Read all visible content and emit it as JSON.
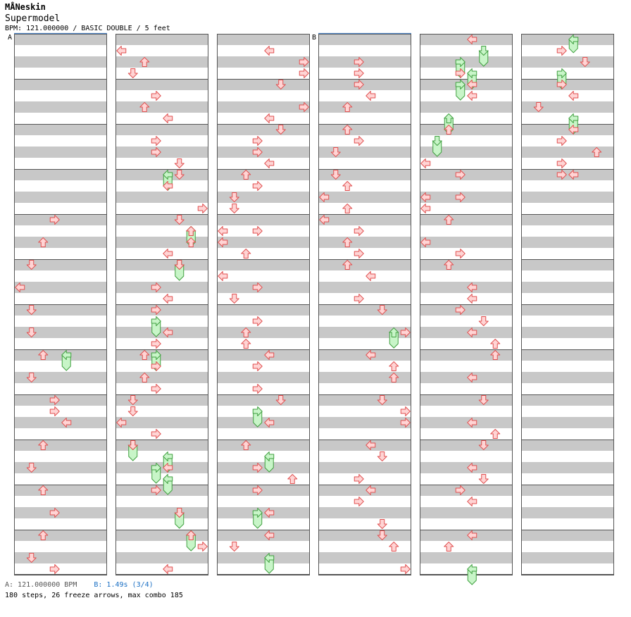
{
  "header": {
    "artist": "MÅNeskin",
    "title": "Supermodel",
    "info": "BPM: 121.000000 / BASIC DOUBLE / 5 feet"
  },
  "footer": {
    "bpm_a": "A: 121.000000 BPM",
    "bpm_b": "B: 1.49s (3/4)",
    "summary": "180 steps, 26 freeze arrows, max combo 185"
  },
  "markers": [
    {
      "label": "A",
      "column": 1,
      "beat": 0
    },
    {
      "label": "B",
      "column": 4,
      "beat": 0
    }
  ],
  "colors": {
    "stripe": "#c8c8c8",
    "border": "#555555",
    "arrow_fill": "#ffd4d4",
    "arrow_stroke": "#e05050",
    "freeze_fill": "#c8f5c8",
    "freeze_stroke": "#40a040",
    "marker_line": "#4a7fc0"
  },
  "chart_data": {
    "type": "step_chart",
    "mode": "BASIC DOUBLE",
    "difficulty_feet": 5,
    "bpm": 121,
    "columns": 6,
    "beats_per_column": 48,
    "lanes": [
      "P1-left",
      "P1-down",
      "P1-up",
      "P1-right",
      "P2-left",
      "P2-down",
      "P2-up",
      "P2-right"
    ],
    "steps_total": 180,
    "freeze_arrows": 26,
    "max_combo": 185,
    "notes": [
      {
        "col": 1,
        "beat": 16,
        "lane": 3
      },
      {
        "col": 1,
        "beat": 18,
        "lane": 2
      },
      {
        "col": 1,
        "beat": 20,
        "lane": 1
      },
      {
        "col": 1,
        "beat": 22,
        "lane": 0
      },
      {
        "col": 1,
        "beat": 24,
        "lane": 1
      },
      {
        "col": 1,
        "beat": 26,
        "lane": 1
      },
      {
        "col": 1,
        "beat": 28,
        "lane": 2
      },
      {
        "col": 1,
        "beat": 30,
        "lane": 1
      },
      {
        "col": 1,
        "beat": 32,
        "lane": 3
      },
      {
        "col": 1,
        "beat": 33,
        "lane": 3
      },
      {
        "col": 1,
        "beat": 34,
        "lane": 4
      },
      {
        "col": 1,
        "beat": 36,
        "lane": 2
      },
      {
        "col": 1,
        "beat": 38,
        "lane": 1
      },
      {
        "col": 1,
        "beat": 40,
        "lane": 2
      },
      {
        "col": 1,
        "beat": 42,
        "lane": 3
      },
      {
        "col": 1,
        "beat": 44,
        "lane": 2
      },
      {
        "col": 1,
        "beat": 46,
        "lane": 1
      },
      {
        "col": 1,
        "beat": 47,
        "lane": 3
      },
      {
        "col": 2,
        "beat": 1,
        "lane": 0
      },
      {
        "col": 2,
        "beat": 2,
        "lane": 2
      },
      {
        "col": 2,
        "beat": 3,
        "lane": 1
      },
      {
        "col": 2,
        "beat": 5,
        "lane": 3
      },
      {
        "col": 2,
        "beat": 6,
        "lane": 2
      },
      {
        "col": 2,
        "beat": 7,
        "lane": 4
      },
      {
        "col": 2,
        "beat": 9,
        "lane": 3
      },
      {
        "col": 2,
        "beat": 10,
        "lane": 3
      },
      {
        "col": 2,
        "beat": 11,
        "lane": 5
      },
      {
        "col": 2,
        "beat": 12,
        "lane": 5
      },
      {
        "col": 2,
        "beat": 13,
        "lane": 4
      },
      {
        "col": 2,
        "beat": 15,
        "lane": 7
      },
      {
        "col": 2,
        "beat": 16,
        "lane": 5
      },
      {
        "col": 2,
        "beat": 17,
        "lane": 6
      },
      {
        "col": 2,
        "beat": 18,
        "lane": 6
      },
      {
        "col": 2,
        "beat": 19,
        "lane": 4
      },
      {
        "col": 2,
        "beat": 20,
        "lane": 5
      },
      {
        "col": 2,
        "beat": 22,
        "lane": 3
      },
      {
        "col": 2,
        "beat": 23,
        "lane": 4
      },
      {
        "col": 2,
        "beat": 24,
        "lane": 3
      },
      {
        "col": 2,
        "beat": 26,
        "lane": 4
      },
      {
        "col": 2,
        "beat": 27,
        "lane": 3
      },
      {
        "col": 2,
        "beat": 28,
        "lane": 2
      },
      {
        "col": 2,
        "beat": 29,
        "lane": 3
      },
      {
        "col": 2,
        "beat": 30,
        "lane": 2
      },
      {
        "col": 2,
        "beat": 31,
        "lane": 3
      },
      {
        "col": 2,
        "beat": 32,
        "lane": 1
      },
      {
        "col": 2,
        "beat": 33,
        "lane": 1
      },
      {
        "col": 2,
        "beat": 34,
        "lane": 0
      },
      {
        "col": 2,
        "beat": 35,
        "lane": 3
      },
      {
        "col": 2,
        "beat": 36,
        "lane": 1
      },
      {
        "col": 2,
        "beat": 38,
        "lane": 4
      },
      {
        "col": 2,
        "beat": 40,
        "lane": 3
      },
      {
        "col": 2,
        "beat": 42,
        "lane": 5
      },
      {
        "col": 2,
        "beat": 44,
        "lane": 6
      },
      {
        "col": 2,
        "beat": 45,
        "lane": 7
      },
      {
        "col": 2,
        "beat": 47,
        "lane": 4
      },
      {
        "col": 3,
        "beat": 1,
        "lane": 4
      },
      {
        "col": 3,
        "beat": 2,
        "lane": 7
      },
      {
        "col": 3,
        "beat": 3,
        "lane": 7
      },
      {
        "col": 3,
        "beat": 4,
        "lane": 5
      },
      {
        "col": 3,
        "beat": 6,
        "lane": 7
      },
      {
        "col": 3,
        "beat": 7,
        "lane": 4
      },
      {
        "col": 3,
        "beat": 8,
        "lane": 5
      },
      {
        "col": 3,
        "beat": 9,
        "lane": 3
      },
      {
        "col": 3,
        "beat": 10,
        "lane": 3
      },
      {
        "col": 3,
        "beat": 11,
        "lane": 4
      },
      {
        "col": 3,
        "beat": 12,
        "lane": 2
      },
      {
        "col": 3,
        "beat": 13,
        "lane": 3
      },
      {
        "col": 3,
        "beat": 14,
        "lane": 1
      },
      {
        "col": 3,
        "beat": 15,
        "lane": 1
      },
      {
        "col": 3,
        "beat": 17,
        "lane": 0
      },
      {
        "col": 3,
        "beat": 17,
        "lane": 3
      },
      {
        "col": 3,
        "beat": 18,
        "lane": 0
      },
      {
        "col": 3,
        "beat": 19,
        "lane": 2
      },
      {
        "col": 3,
        "beat": 21,
        "lane": 0
      },
      {
        "col": 3,
        "beat": 22,
        "lane": 3
      },
      {
        "col": 3,
        "beat": 23,
        "lane": 1
      },
      {
        "col": 3,
        "beat": 25,
        "lane": 3
      },
      {
        "col": 3,
        "beat": 26,
        "lane": 2
      },
      {
        "col": 3,
        "beat": 27,
        "lane": 2
      },
      {
        "col": 3,
        "beat": 28,
        "lane": 4
      },
      {
        "col": 3,
        "beat": 29,
        "lane": 3
      },
      {
        "col": 3,
        "beat": 31,
        "lane": 3
      },
      {
        "col": 3,
        "beat": 32,
        "lane": 5
      },
      {
        "col": 3,
        "beat": 34,
        "lane": 4
      },
      {
        "col": 3,
        "beat": 36,
        "lane": 2
      },
      {
        "col": 3,
        "beat": 38,
        "lane": 3
      },
      {
        "col": 3,
        "beat": 39,
        "lane": 6
      },
      {
        "col": 3,
        "beat": 40,
        "lane": 3
      },
      {
        "col": 3,
        "beat": 42,
        "lane": 4
      },
      {
        "col": 3,
        "beat": 44,
        "lane": 4
      },
      {
        "col": 3,
        "beat": 45,
        "lane": 1
      },
      {
        "col": 4,
        "beat": 2,
        "lane": 3
      },
      {
        "col": 4,
        "beat": 3,
        "lane": 3
      },
      {
        "col": 4,
        "beat": 4,
        "lane": 3
      },
      {
        "col": 4,
        "beat": 5,
        "lane": 4
      },
      {
        "col": 4,
        "beat": 6,
        "lane": 2
      },
      {
        "col": 4,
        "beat": 8,
        "lane": 2
      },
      {
        "col": 4,
        "beat": 9,
        "lane": 3
      },
      {
        "col": 4,
        "beat": 10,
        "lane": 1
      },
      {
        "col": 4,
        "beat": 12,
        "lane": 1
      },
      {
        "col": 4,
        "beat": 13,
        "lane": 2
      },
      {
        "col": 4,
        "beat": 14,
        "lane": 0
      },
      {
        "col": 4,
        "beat": 15,
        "lane": 2
      },
      {
        "col": 4,
        "beat": 16,
        "lane": 0
      },
      {
        "col": 4,
        "beat": 17,
        "lane": 3
      },
      {
        "col": 4,
        "beat": 18,
        "lane": 2
      },
      {
        "col": 4,
        "beat": 19,
        "lane": 3
      },
      {
        "col": 4,
        "beat": 20,
        "lane": 2
      },
      {
        "col": 4,
        "beat": 21,
        "lane": 4
      },
      {
        "col": 4,
        "beat": 23,
        "lane": 3
      },
      {
        "col": 4,
        "beat": 24,
        "lane": 5
      },
      {
        "col": 4,
        "beat": 26,
        "lane": 7
      },
      {
        "col": 4,
        "beat": 28,
        "lane": 4
      },
      {
        "col": 4,
        "beat": 29,
        "lane": 6
      },
      {
        "col": 4,
        "beat": 30,
        "lane": 6
      },
      {
        "col": 4,
        "beat": 32,
        "lane": 5
      },
      {
        "col": 4,
        "beat": 33,
        "lane": 7
      },
      {
        "col": 4,
        "beat": 34,
        "lane": 7
      },
      {
        "col": 4,
        "beat": 36,
        "lane": 4
      },
      {
        "col": 4,
        "beat": 37,
        "lane": 5
      },
      {
        "col": 4,
        "beat": 39,
        "lane": 3
      },
      {
        "col": 4,
        "beat": 40,
        "lane": 4
      },
      {
        "col": 4,
        "beat": 41,
        "lane": 3
      },
      {
        "col": 4,
        "beat": 43,
        "lane": 5
      },
      {
        "col": 4,
        "beat": 44,
        "lane": 5
      },
      {
        "col": 4,
        "beat": 45,
        "lane": 6
      },
      {
        "col": 4,
        "beat": 47,
        "lane": 7
      },
      {
        "col": 5,
        "beat": 0,
        "lane": 4
      },
      {
        "col": 5,
        "beat": 3,
        "lane": 3
      },
      {
        "col": 5,
        "beat": 4,
        "lane": 4
      },
      {
        "col": 5,
        "beat": 5,
        "lane": 4
      },
      {
        "col": 5,
        "beat": 8,
        "lane": 2
      },
      {
        "col": 5,
        "beat": 11,
        "lane": 0
      },
      {
        "col": 5,
        "beat": 12,
        "lane": 3
      },
      {
        "col": 5,
        "beat": 14,
        "lane": 0
      },
      {
        "col": 5,
        "beat": 14,
        "lane": 3
      },
      {
        "col": 5,
        "beat": 15,
        "lane": 0
      },
      {
        "col": 5,
        "beat": 16,
        "lane": 2
      },
      {
        "col": 5,
        "beat": 18,
        "lane": 0
      },
      {
        "col": 5,
        "beat": 19,
        "lane": 3
      },
      {
        "col": 5,
        "beat": 20,
        "lane": 2
      },
      {
        "col": 5,
        "beat": 22,
        "lane": 4
      },
      {
        "col": 5,
        "beat": 23,
        "lane": 4
      },
      {
        "col": 5,
        "beat": 24,
        "lane": 3
      },
      {
        "col": 5,
        "beat": 25,
        "lane": 5
      },
      {
        "col": 5,
        "beat": 26,
        "lane": 4
      },
      {
        "col": 5,
        "beat": 27,
        "lane": 6
      },
      {
        "col": 5,
        "beat": 28,
        "lane": 6
      },
      {
        "col": 5,
        "beat": 30,
        "lane": 4
      },
      {
        "col": 5,
        "beat": 32,
        "lane": 5
      },
      {
        "col": 5,
        "beat": 34,
        "lane": 4
      },
      {
        "col": 5,
        "beat": 35,
        "lane": 6
      },
      {
        "col": 5,
        "beat": 36,
        "lane": 5
      },
      {
        "col": 5,
        "beat": 38,
        "lane": 4
      },
      {
        "col": 5,
        "beat": 39,
        "lane": 5
      },
      {
        "col": 5,
        "beat": 40,
        "lane": 3
      },
      {
        "col": 5,
        "beat": 41,
        "lane": 4
      },
      {
        "col": 5,
        "beat": 44,
        "lane": 4
      },
      {
        "col": 5,
        "beat": 45,
        "lane": 2
      },
      {
        "col": 6,
        "beat": 1,
        "lane": 3
      },
      {
        "col": 6,
        "beat": 2,
        "lane": 5
      },
      {
        "col": 6,
        "beat": 4,
        "lane": 3
      },
      {
        "col": 6,
        "beat": 5,
        "lane": 4
      },
      {
        "col": 6,
        "beat": 6,
        "lane": 1
      },
      {
        "col": 6,
        "beat": 8,
        "lane": 4
      },
      {
        "col": 6,
        "beat": 9,
        "lane": 3
      },
      {
        "col": 6,
        "beat": 10,
        "lane": 6
      },
      {
        "col": 6,
        "beat": 11,
        "lane": 3
      },
      {
        "col": 6,
        "beat": 12,
        "lane": 3
      },
      {
        "col": 6,
        "beat": 12,
        "lane": 4
      }
    ],
    "freezes": [
      {
        "col": 1,
        "beat": 28,
        "end": 29,
        "lane": 4
      },
      {
        "col": 2,
        "beat": 12,
        "end": 13,
        "lane": 4
      },
      {
        "col": 2,
        "beat": 17,
        "end": 18,
        "lane": 6
      },
      {
        "col": 2,
        "beat": 20,
        "end": 21,
        "lane": 5
      },
      {
        "col": 2,
        "beat": 25,
        "end": 26,
        "lane": 3
      },
      {
        "col": 2,
        "beat": 28,
        "end": 29,
        "lane": 3
      },
      {
        "col": 2,
        "beat": 36,
        "end": 37,
        "lane": 1
      },
      {
        "col": 2,
        "beat": 37,
        "end": 38,
        "lane": 4
      },
      {
        "col": 2,
        "beat": 38,
        "end": 39,
        "lane": 3
      },
      {
        "col": 2,
        "beat": 39,
        "end": 40,
        "lane": 4
      },
      {
        "col": 2,
        "beat": 42,
        "end": 43,
        "lane": 5
      },
      {
        "col": 2,
        "beat": 44,
        "end": 45,
        "lane": 6
      },
      {
        "col": 3,
        "beat": 33,
        "end": 34,
        "lane": 3
      },
      {
        "col": 3,
        "beat": 37,
        "end": 38,
        "lane": 4
      },
      {
        "col": 3,
        "beat": 42,
        "end": 43,
        "lane": 3
      },
      {
        "col": 3,
        "beat": 46,
        "end": 47,
        "lane": 4
      },
      {
        "col": 4,
        "beat": 26,
        "end": 27,
        "lane": 6
      },
      {
        "col": 5,
        "beat": 1,
        "end": 2,
        "lane": 5
      },
      {
        "col": 5,
        "beat": 2,
        "end": 3,
        "lane": 3
      },
      {
        "col": 5,
        "beat": 3,
        "end": 4,
        "lane": 4
      },
      {
        "col": 5,
        "beat": 4,
        "end": 5,
        "lane": 3
      },
      {
        "col": 5,
        "beat": 7,
        "end": 8,
        "lane": 2
      },
      {
        "col": 5,
        "beat": 9,
        "end": 10,
        "lane": 1
      },
      {
        "col": 5,
        "beat": 47,
        "end": 48,
        "lane": 4
      },
      {
        "col": 6,
        "beat": 0,
        "end": 0.8,
        "lane": 4
      },
      {
        "col": 6,
        "beat": 3,
        "end": 4,
        "lane": 3
      },
      {
        "col": 6,
        "beat": 7,
        "end": 8,
        "lane": 4
      }
    ]
  }
}
